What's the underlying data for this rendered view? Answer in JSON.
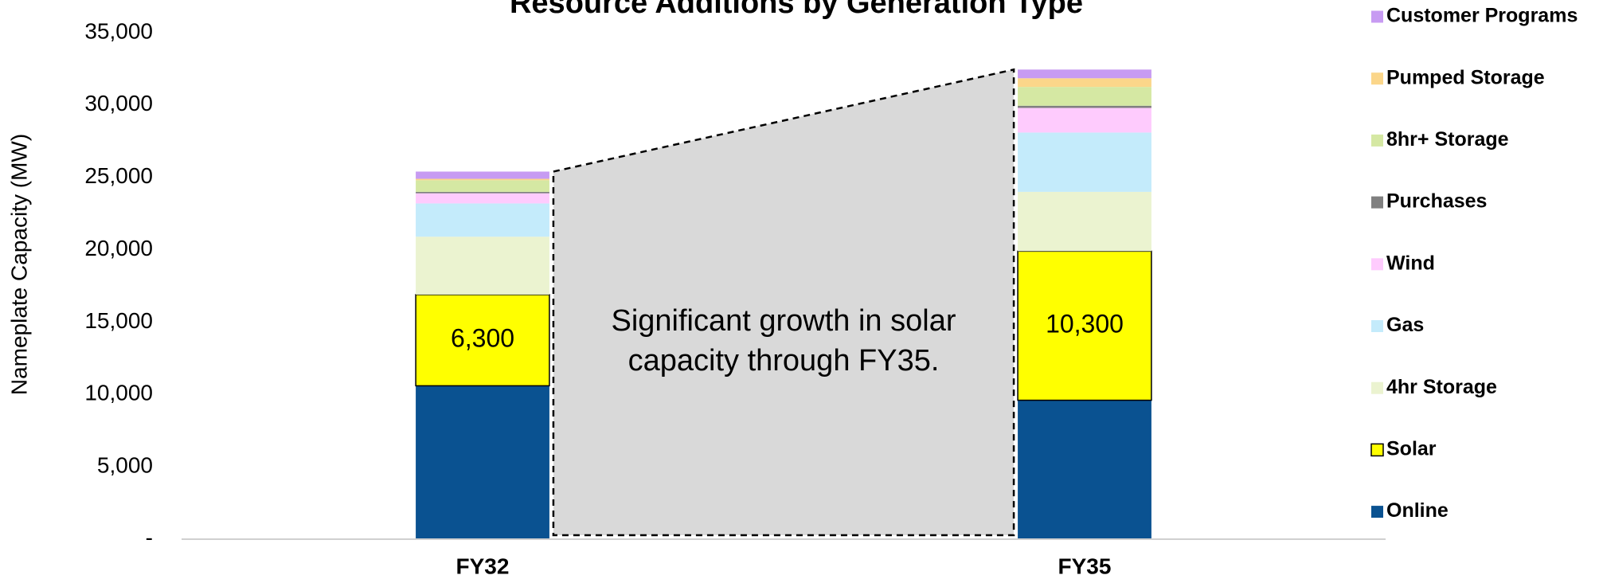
{
  "chart_data": {
    "type": "stacked_bar",
    "title": "Resource Additions by Generation Type",
    "y_label": "Nameplate Capacity (MW)",
    "annotation": "Significant growth in solar capacity through FY35.",
    "categories": [
      "FY32",
      "FY35"
    ],
    "series": [
      {
        "name": "Online",
        "color": "#0a5291",
        "values": [
          10600,
          9600
        ]
      },
      {
        "name": "Solar",
        "color": "#ffff00",
        "values": [
          6300,
          10300
        ],
        "value_labels": [
          "6,300",
          "10,300"
        ]
      },
      {
        "name": "4hr Storage",
        "color": "#ebf3d0",
        "values": [
          4000,
          4100
        ]
      },
      {
        "name": "Gas",
        "color": "#c4ebfb",
        "values": [
          2300,
          4100
        ]
      },
      {
        "name": "Wind",
        "color": "#fecbfd",
        "values": [
          700,
          1700
        ]
      },
      {
        "name": "Purchases",
        "color": "#808080",
        "values": [
          100,
          150
        ]
      },
      {
        "name": "8hr+ Storage",
        "color": "#d5e8a3",
        "values": [
          800,
          1300
        ]
      },
      {
        "name": "Pumped Storage",
        "color": "#fbd68a",
        "values": [
          100,
          600
        ]
      },
      {
        "name": "Customer Programs",
        "color": "#c79bf2",
        "values": [
          500,
          600
        ]
      }
    ],
    "ylim": [
      0,
      35000
    ],
    "yticks": [
      {
        "value": 0,
        "label": "-"
      },
      {
        "value": 5000,
        "label": "5,000"
      },
      {
        "value": 10000,
        "label": "10,000"
      },
      {
        "value": 15000,
        "label": "15,000"
      },
      {
        "value": 20000,
        "label": "20,000"
      },
      {
        "value": 25000,
        "label": "25,000"
      },
      {
        "value": 30000,
        "label": "30,000"
      },
      {
        "value": 35000,
        "label": "35,000"
      }
    ],
    "legend": "right",
    "grid": false
  }
}
